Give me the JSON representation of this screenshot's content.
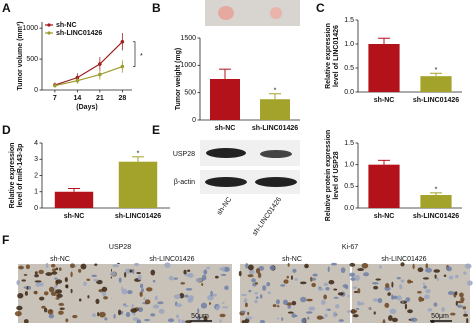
{
  "panel_labels": [
    "A",
    "B",
    "C",
    "D",
    "E",
    "F"
  ],
  "chart_data": [
    {
      "type": "line",
      "ylabel": [
        "Tumor volume (mm³)"
      ],
      "xlabel": "(Days)",
      "x": [
        7,
        14,
        21,
        28
      ],
      "xlim": [
        3,
        31
      ],
      "xticks": [
        7,
        14,
        21,
        28
      ],
      "ylim": [
        0,
        1100
      ],
      "yticks": [
        0,
        500,
        1000
      ],
      "series": [
        {
          "name": "sh-NC",
          "color": "#a01c1c",
          "values": [
            80,
            200,
            420,
            780
          ],
          "errors": [
            40,
            70,
            110,
            140
          ]
        },
        {
          "name": "sh-LINC01426",
          "color": "#9c9c2c",
          "values": [
            70,
            150,
            250,
            380
          ],
          "errors": [
            30,
            50,
            80,
            100
          ]
        }
      ],
      "annotation": "*",
      "legend": "upper left"
    },
    {
      "type": "bar",
      "ylabel": [
        "Tumor weight (mg)"
      ],
      "categories": [
        "sh-NC",
        "sh-LINC01426"
      ],
      "values": [
        750,
        380
      ],
      "errors": [
        180,
        100
      ],
      "colors": [
        "#b3121b",
        "#a3a32c"
      ],
      "ylim": [
        0,
        1500
      ],
      "yticks": [
        0,
        500,
        1000,
        1500
      ],
      "annotation": "*"
    },
    {
      "type": "bar",
      "ylabel": [
        "Relative expression",
        "level of LINC01426"
      ],
      "categories": [
        "sh-NC",
        "sh-LINC01426"
      ],
      "values": [
        1.0,
        0.33
      ],
      "errors": [
        0.12,
        0.06
      ],
      "colors": [
        "#b3121b",
        "#a3a32c"
      ],
      "ylim": [
        0,
        1.5
      ],
      "yticks": [
        {
          "value": 0,
          "label": "0.0"
        },
        0.5,
        {
          "value": 1,
          "label": "1.0"
        },
        1.5
      ],
      "annotation": "*"
    },
    {
      "type": "bar",
      "ylabel": [
        "Relative expression",
        "level of miR-143-3p"
      ],
      "categories": [
        "sh-NC",
        "sh-LINC01426"
      ],
      "values": [
        1.0,
        2.85
      ],
      "errors": [
        0.2,
        0.3
      ],
      "colors": [
        "#b3121b",
        "#a3a32c"
      ],
      "ylim": [
        0,
        4
      ],
      "yticks": [
        0,
        1,
        2,
        3,
        4
      ],
      "annotation": "*"
    },
    {
      "type": "bar",
      "ylabel": [
        "Relative protein expression",
        "level of USP28"
      ],
      "categories": [
        "sh-NC",
        "sh-LINC01426"
      ],
      "values": [
        1.0,
        0.3
      ],
      "errors": [
        0.1,
        0.05
      ],
      "colors": [
        "#b3121b",
        "#a3a32c"
      ],
      "ylim": [
        0,
        1.5
      ],
      "yticks": [
        {
          "value": 0,
          "label": "0.0"
        },
        0.5,
        {
          "value": 1,
          "label": "1.0"
        },
        1.5
      ],
      "annotation": "*"
    }
  ],
  "blot": {
    "bands": [
      "USP28",
      "β-actin"
    ],
    "lanes": [
      "sh-NC",
      "sh-LINC01426"
    ]
  },
  "histology": {
    "stains": [
      "USP28",
      "Ki-67"
    ],
    "groups": [
      "sh-NC",
      "sh-LINC01426"
    ],
    "scale_bar": "50μm"
  }
}
